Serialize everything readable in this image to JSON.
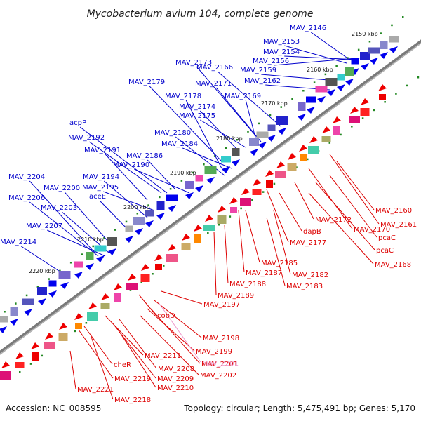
{
  "title": "Mycobacterium avium 104, complete genome",
  "footer": {
    "accession": "Accession: NC_008595",
    "summary": "Topology: circular; Length: 5,475,491 bp; Genes: 5,170"
  },
  "colors": {
    "forward_label": "#0000cc",
    "reverse_label": "#dd0000",
    "highlight_label": "#ee99cc",
    "backbone": "#888888",
    "forward_gene": "#0000ee",
    "reverse_gene": "#ee0000",
    "tick": "#228822"
  },
  "scale_labels": [
    "2150 kbp",
    "2160 kbp",
    "2170 kbp",
    "2180 kbp",
    "2190 kbp",
    "2200 kbp",
    "2210 kbp",
    "2220 kbp"
  ],
  "forward_labels": [
    "MAV_2146",
    "MAV_2153",
    "MAV_2154",
    "MAV_2156",
    "MAV_2159",
    "MAV_2162",
    "MAV_2166",
    "MAV_2173",
    "MAV_2171",
    "MAV_2169",
    "MAV_2179",
    "MAV_2178",
    "MAV_2174",
    "MAV_2175",
    "acpP",
    "MAV_2192",
    "MAV_2180",
    "MAV_2184",
    "MAV_2191",
    "MAV_2186",
    "MAV_2190",
    "MAV_2204",
    "MAV_2194",
    "MAV_2200",
    "MAV_2195",
    "MAV_2206",
    "aceE",
    "MAV_2203",
    "MAV_2207",
    "MAV_2214"
  ],
  "reverse_labels": [
    "MAV_2160",
    "MAV_2161",
    "MAV_2172",
    "MAV_2170",
    "pcaC",
    "dapB",
    "pcaC",
    "MAV_2177",
    "MAV_2168",
    "MAV_2185",
    "MAV_2187",
    "MAV_2182",
    "MAV_2188",
    "MAV_2183",
    "MAV_2189",
    "MAV_2197",
    "cobD",
    "MAV_2198",
    "MAV_2199",
    "MAV_2211",
    "MAV_2201",
    "cheR",
    "MAV_2208",
    "MAV_2202",
    "MAV_2219",
    "MAV_2209",
    "MAV_2210",
    "MAV_2221",
    "MAV_2218"
  ],
  "highlight_label": "MAV_2201"
}
